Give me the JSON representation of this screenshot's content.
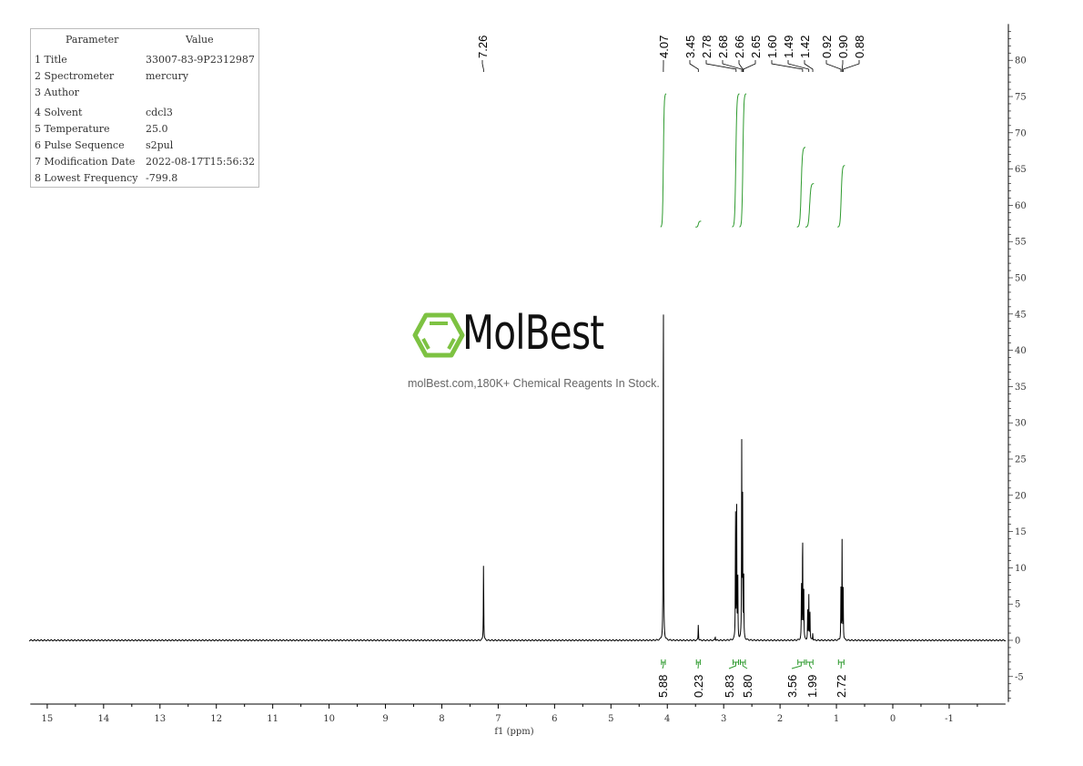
{
  "parameters": {
    "header": [
      "Parameter",
      "Value"
    ],
    "rows": [
      {
        "name": "1 Title",
        "value": "33007-83-9P2312987"
      },
      {
        "name": "2 Spectrometer",
        "value": "mercury"
      },
      {
        "name": "3 Author",
        "value": ""
      },
      {
        "name": "4 Solvent",
        "value": "cdcl3"
      },
      {
        "name": "5 Temperature",
        "value": "25.0"
      },
      {
        "name": "6 Pulse Sequence",
        "value": "s2pul"
      },
      {
        "name": "7 Modification Date",
        "value": "2022-08-17T15:56:32"
      },
      {
        "name": "8 Lowest Frequency",
        "value": "-799.8"
      }
    ]
  },
  "watermark": {
    "logo_text": "MolBest",
    "tagline": "molBest.com,180K+ Chemical Reagents In Stock.",
    "logo_color": "#7dc242"
  },
  "chart_data": {
    "type": "line",
    "xlabel": "f1 (ppm)",
    "ylabel": "",
    "xlim": [
      15.3,
      -2.0
    ],
    "ylim": [
      -8.5,
      85
    ],
    "x_ticks": [
      15,
      14,
      13,
      12,
      11,
      10,
      9,
      8,
      7,
      6,
      5,
      4,
      3,
      2,
      1,
      0,
      -1
    ],
    "y_ticks": [
      -5,
      0,
      5,
      10,
      15,
      20,
      25,
      30,
      35,
      40,
      45,
      50,
      55,
      60,
      65,
      70,
      75,
      80
    ],
    "x_reversed": true,
    "y_axis_side": "right",
    "grid": false,
    "line_color": "#000000",
    "integral_color": "#2e9a2e",
    "peaks": [
      {
        "ppm": 7.26,
        "height": 11.3
      },
      {
        "ppm": 4.07,
        "height": 53.6
      },
      {
        "ppm": 3.45,
        "height": 2.3
      },
      {
        "ppm": 3.15,
        "height": 0.6
      },
      {
        "ppm": 2.79,
        "height": 18.5
      },
      {
        "ppm": 2.77,
        "height": 20.0
      },
      {
        "ppm": 2.75,
        "height": 9.5
      },
      {
        "ppm": 2.68,
        "height": 26.5
      },
      {
        "ppm": 2.665,
        "height": 21.0
      },
      {
        "ppm": 2.645,
        "height": 9.5
      },
      {
        "ppm": 1.62,
        "height": 8.5
      },
      {
        "ppm": 1.6,
        "height": 16.0
      },
      {
        "ppm": 1.58,
        "height": 8.5
      },
      {
        "ppm": 1.51,
        "height": 4.0
      },
      {
        "ppm": 1.49,
        "height": 6.3
      },
      {
        "ppm": 1.47,
        "height": 4.0
      },
      {
        "ppm": 1.42,
        "height": 1.0
      },
      {
        "ppm": 0.92,
        "height": 7.0
      },
      {
        "ppm": 0.9,
        "height": 13.5
      },
      {
        "ppm": 0.88,
        "height": 7.0
      }
    ],
    "peak_labels": [
      "7.26",
      "4.07",
      "3.45",
      "2.78",
      "2.68",
      "2.66",
      "2.65",
      "1.60",
      "1.49",
      "1.42",
      "0.92",
      "0.90",
      "0.88"
    ],
    "integrals": [
      {
        "from": 4.12,
        "to": 4.02,
        "value": "5.88",
        "y_start": 57,
        "y_end": 75.4
      },
      {
        "from": 3.5,
        "to": 3.4,
        "value": "0.23",
        "y_start": 57,
        "y_end": 57.8
      },
      {
        "from": 2.85,
        "to": 2.72,
        "value": "5.83",
        "y_start": 57,
        "y_end": 75.4
      },
      {
        "from": 2.72,
        "to": 2.6,
        "value": "5.80",
        "y_start": 57,
        "y_end": 75.4
      },
      {
        "from": 1.7,
        "to": 1.55,
        "value": "3.56",
        "y_start": 57,
        "y_end": 68
      },
      {
        "from": 1.55,
        "to": 1.4,
        "value": "1.99",
        "y_start": 57,
        "y_end": 63
      },
      {
        "from": 0.98,
        "to": 0.85,
        "value": "2.72",
        "y_start": 57,
        "y_end": 65.5
      }
    ]
  }
}
